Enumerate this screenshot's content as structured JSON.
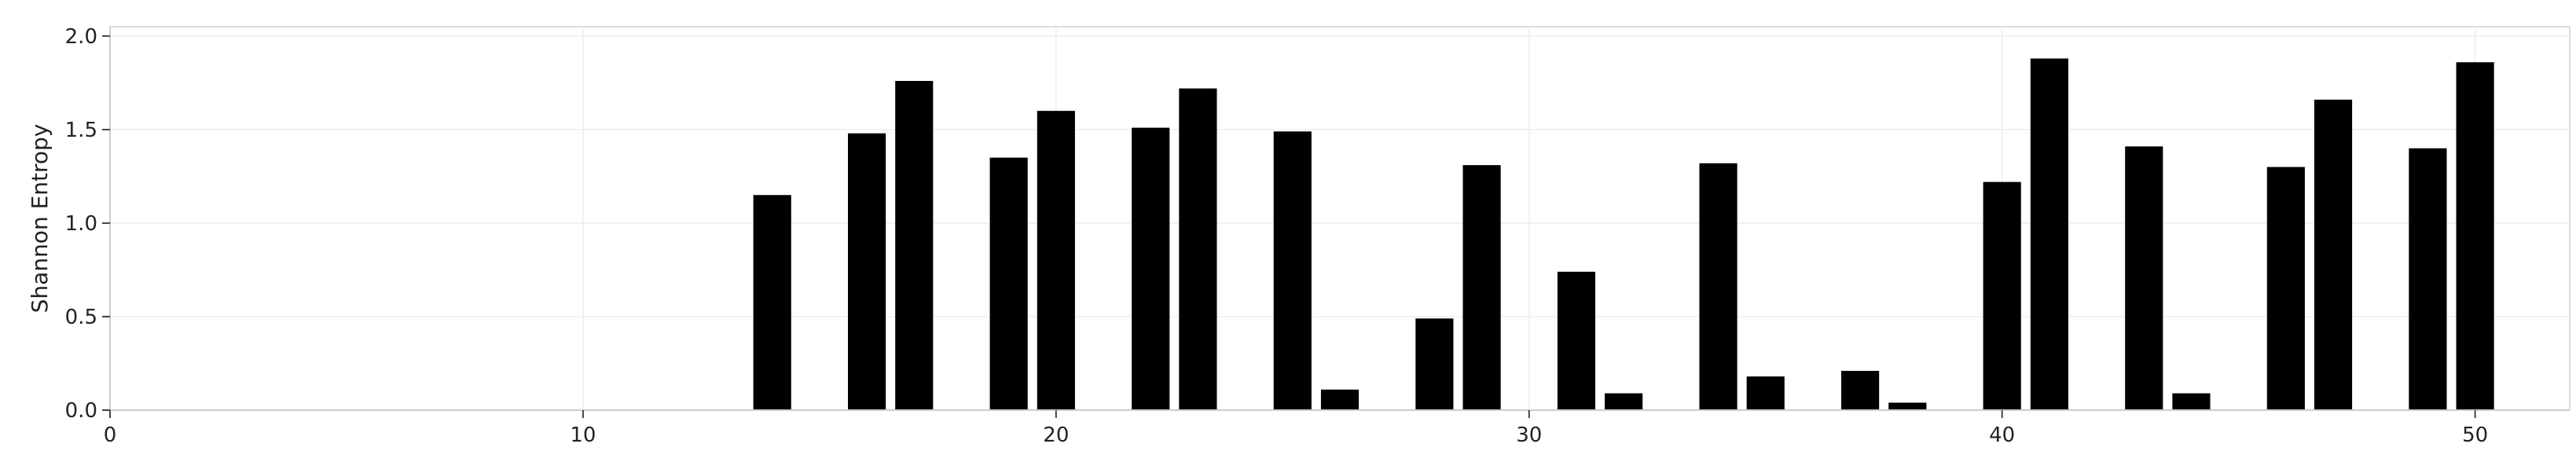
{
  "chart_data": {
    "type": "bar",
    "ylabel": "Shannon Entropy",
    "xlabel": "",
    "xlim": [
      0,
      52
    ],
    "ylim": [
      0,
      2.05
    ],
    "x_ticks": [
      0,
      10,
      20,
      30,
      40,
      50
    ],
    "y_ticks": [
      0.0,
      0.5,
      1.0,
      1.5,
      2.0
    ],
    "grid": true,
    "bar_color": "#000000",
    "x": [
      14,
      16,
      17,
      19,
      20,
      22,
      23,
      25,
      26,
      28,
      29,
      31,
      32,
      34,
      35,
      37,
      38,
      40,
      41,
      43,
      44,
      46,
      47,
      49,
      50
    ],
    "values": [
      1.15,
      1.48,
      1.76,
      1.35,
      1.6,
      1.51,
      1.72,
      1.49,
      0.11,
      0.49,
      1.31,
      0.74,
      0.09,
      1.32,
      0.18,
      0.21,
      0.04,
      1.22,
      1.88,
      1.41,
      0.09,
      1.3,
      1.66,
      1.4,
      1.86
    ]
  }
}
